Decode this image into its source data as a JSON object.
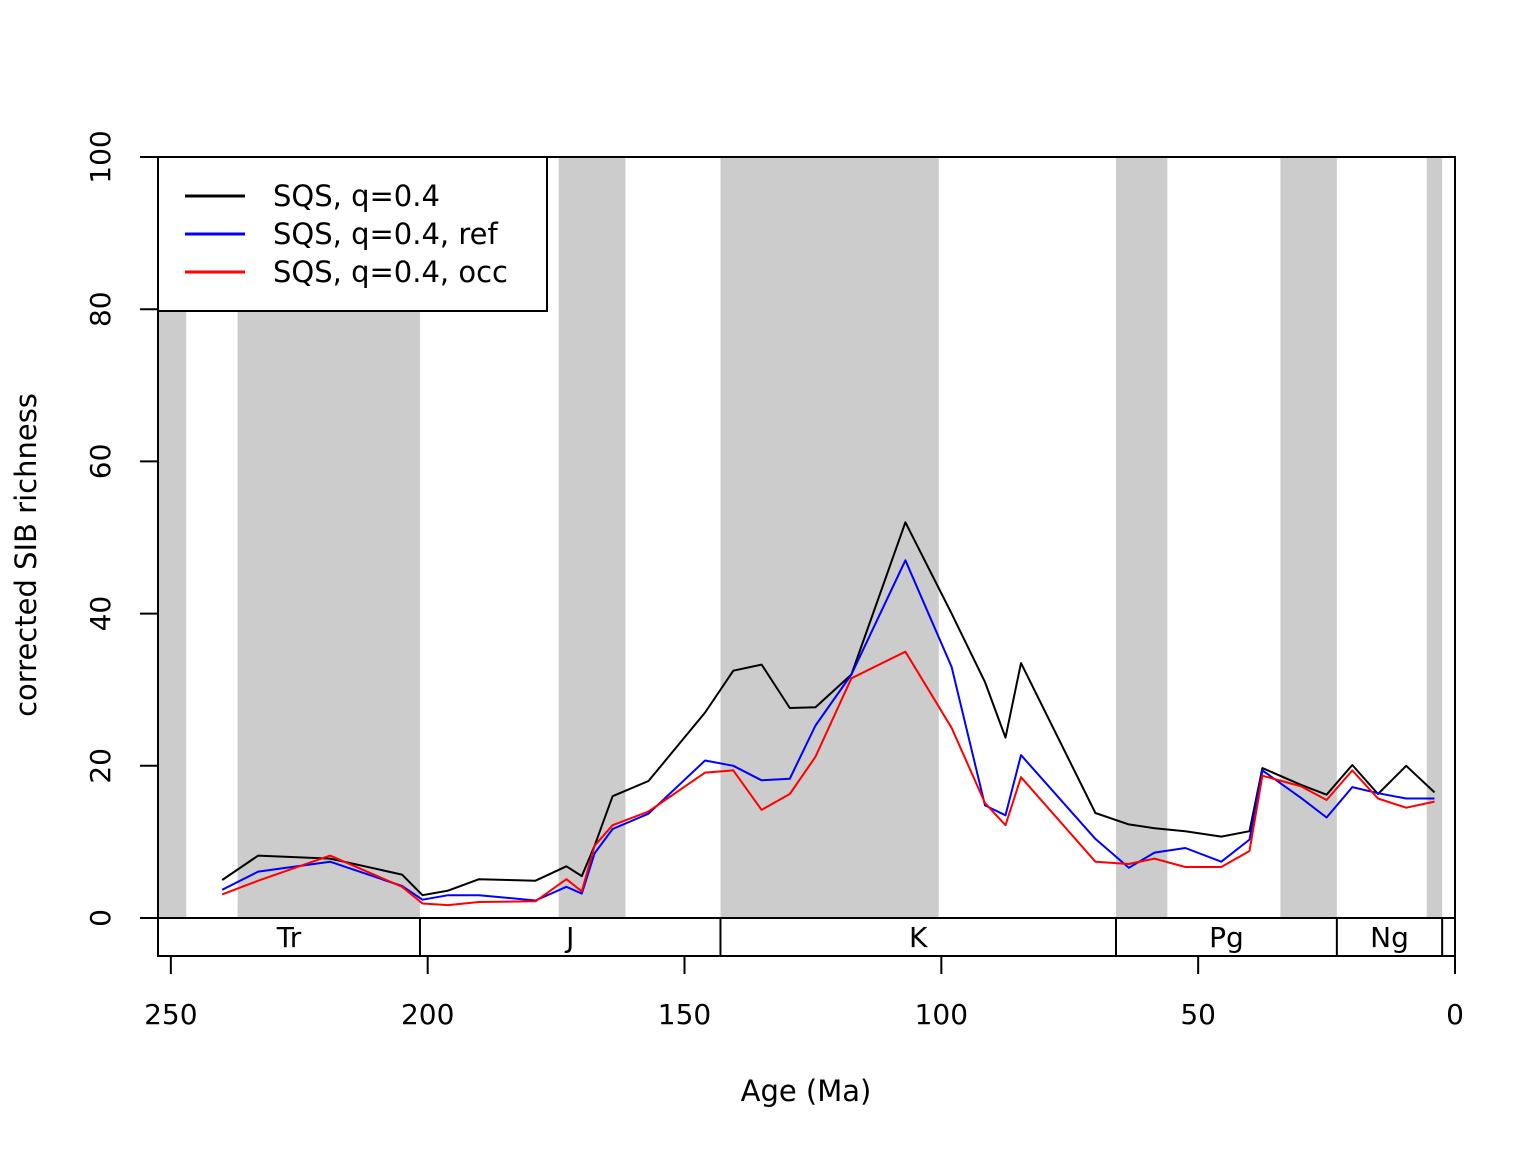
{
  "chart_data": {
    "type": "line",
    "xlabel": "Age (Ma)",
    "ylabel": "corrected SIB richness",
    "xlim": [
      252.5,
      0
    ],
    "ylim": [
      0,
      100
    ],
    "x_ticks": [
      250,
      200,
      150,
      100,
      50,
      0
    ],
    "y_ticks": [
      0,
      20,
      40,
      60,
      80,
      100
    ],
    "legend_position": "top-left",
    "shaded_bands": [
      [
        252.5,
        247
      ],
      [
        237,
        201.5
      ],
      [
        174.5,
        161.5
      ],
      [
        143,
        100.5
      ],
      [
        66,
        56
      ],
      [
        34,
        23
      ],
      [
        5.5,
        2.5
      ]
    ],
    "periods": [
      {
        "label": "Tr",
        "start": 252.5,
        "end": 201.5
      },
      {
        "label": "J",
        "start": 201.5,
        "end": 143
      },
      {
        "label": "K",
        "start": 143,
        "end": 66
      },
      {
        "label": "Pg",
        "start": 66,
        "end": 23
      },
      {
        "label": "Ng",
        "start": 23,
        "end": 2.5
      }
    ],
    "series": [
      {
        "name": "SQS, q=0.4",
        "color": "#000000",
        "x": [
          240,
          233,
          219,
          205,
          201,
          196,
          190,
          179,
          173,
          170,
          167.5,
          164,
          157,
          146,
          140.5,
          135,
          129.5,
          124.5,
          117.5,
          107,
          98,
          91.5,
          87.5,
          84.5,
          70,
          63.5,
          58.5,
          52.5,
          45.5,
          40,
          37.5,
          30,
          25,
          20,
          15,
          9.5,
          4
        ],
        "y": [
          5,
          8.2,
          7.8,
          5.7,
          3,
          3.6,
          5.1,
          4.9,
          6.8,
          5.5,
          9.5,
          16,
          18,
          27,
          32.5,
          33.3,
          27.6,
          27.7,
          32,
          52,
          40,
          31,
          23.7,
          33.5,
          13.8,
          12.3,
          11.8,
          11.4,
          10.7,
          11.4,
          19.7,
          17.5,
          16.2,
          20.1,
          16.3,
          20,
          16.5
        ]
      },
      {
        "name": "SQS, q=0.4, ref",
        "color": "#0000ff",
        "x": [
          240,
          233,
          219,
          205,
          201,
          196,
          190,
          179,
          173,
          170,
          167.5,
          164,
          157,
          146,
          140.5,
          135,
          129.5,
          124.5,
          117.5,
          107,
          98,
          91.5,
          87.5,
          84.5,
          70,
          63.5,
          58.5,
          52.5,
          45.5,
          40,
          37.5,
          30,
          25,
          20,
          15,
          9.5,
          4
        ],
        "y": [
          3.7,
          6.1,
          7.4,
          4.2,
          2.4,
          3,
          3,
          2.3,
          4.1,
          3.2,
          8.5,
          11.7,
          13.7,
          20.7,
          20,
          18.1,
          18.3,
          25.3,
          32,
          47,
          33,
          14.8,
          13.5,
          21.4,
          10.4,
          6.6,
          8.6,
          9.2,
          7.4,
          10.3,
          19.4,
          15.8,
          13.2,
          17.2,
          16.4,
          15.7,
          15.7
        ]
      },
      {
        "name": "SQS, q=0.4, occ",
        "color": "#ff0000",
        "x": [
          240,
          233,
          219,
          205,
          201,
          196,
          190,
          179,
          173,
          170,
          167.5,
          164,
          157,
          146,
          140.5,
          135,
          129.5,
          124.5,
          117.5,
          107,
          98,
          91.5,
          87.5,
          84.5,
          70,
          63.5,
          58.5,
          52.5,
          45.5,
          40,
          37.5,
          30,
          25,
          20,
          15,
          9.5,
          4
        ],
        "y": [
          3.1,
          4.9,
          8.2,
          4.1,
          1.9,
          1.7,
          2.1,
          2.2,
          5.1,
          3.5,
          9.5,
          12.2,
          14,
          19.1,
          19.4,
          14.2,
          16.3,
          21.2,
          31.5,
          35,
          25,
          15.1,
          12.2,
          18.5,
          7.4,
          7.1,
          7.8,
          6.7,
          6.7,
          8.8,
          18.7,
          17.3,
          15.5,
          19.4,
          15.7,
          14.5,
          15.3
        ]
      }
    ]
  }
}
